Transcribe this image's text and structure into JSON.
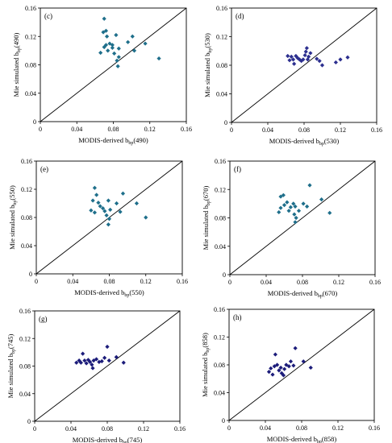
{
  "chart_data": [
    {
      "type": "scatter",
      "panel": "(c)",
      "xlabel": "MODIS-derived b",
      "xlabel_sub": "bp",
      "xlabel_suffix": "(490)",
      "ylabel": "Mie simulated b",
      "ylabel_sub": "bp",
      "ylabel_suffix": "(490)",
      "xlim": [
        0,
        0.16
      ],
      "ylim": [
        0,
        0.16
      ],
      "xticks": [
        "0",
        "0.04",
        "0.08",
        "0.12",
        "0.16"
      ],
      "yticks": [
        "0",
        "0.04",
        "0.08",
        "0.12",
        "0.16"
      ],
      "one_to_one_line": true,
      "marker_color": "#1f6f8b",
      "points": [
        [
          0.07,
          0.145
        ],
        [
          0.069,
          0.126
        ],
        [
          0.072,
          0.128
        ],
        [
          0.073,
          0.12
        ],
        [
          0.076,
          0.11
        ],
        [
          0.072,
          0.108
        ],
        [
          0.079,
          0.108
        ],
        [
          0.066,
          0.097
        ],
        [
          0.07,
          0.105
        ],
        [
          0.074,
          0.1
        ],
        [
          0.079,
          0.104
        ],
        [
          0.083,
          0.122
        ],
        [
          0.081,
          0.096
        ],
        [
          0.086,
          0.103
        ],
        [
          0.086,
          0.091
        ],
        [
          0.084,
          0.086
        ],
        [
          0.085,
          0.078
        ],
        [
          0.096,
          0.112
        ],
        [
          0.101,
          0.12
        ],
        [
          0.103,
          0.1
        ],
        [
          0.115,
          0.11
        ],
        [
          0.13,
          0.089
        ]
      ]
    },
    {
      "type": "scatter",
      "panel": "(d)",
      "xlabel": "MODIS-derived b",
      "xlabel_sub": "bp",
      "xlabel_suffix": "(530)",
      "ylabel": "Mie simulated b",
      "ylabel_sub": "bp",
      "ylabel_suffix": "(530)",
      "xlim": [
        0,
        0.16
      ],
      "ylim": [
        0,
        0.16
      ],
      "xticks": [
        "0",
        "0.04",
        "0.08",
        "0.12",
        "0.16"
      ],
      "yticks": [
        "0",
        "0.04",
        "0.08",
        "0.12",
        "0.16"
      ],
      "one_to_one_line": true,
      "marker_color": "#2c2f8f",
      "points": [
        [
          0.062,
          0.093
        ],
        [
          0.064,
          0.087
        ],
        [
          0.066,
          0.092
        ],
        [
          0.068,
          0.088
        ],
        [
          0.069,
          0.082
        ],
        [
          0.071,
          0.093
        ],
        [
          0.073,
          0.09
        ],
        [
          0.075,
          0.088
        ],
        [
          0.077,
          0.086
        ],
        [
          0.079,
          0.088
        ],
        [
          0.081,
          0.094
        ],
        [
          0.082,
          0.099
        ],
        [
          0.083,
          0.104
        ],
        [
          0.085,
          0.092
        ],
        [
          0.087,
          0.097
        ],
        [
          0.084,
          0.088
        ],
        [
          0.094,
          0.089
        ],
        [
          0.097,
          0.086
        ],
        [
          0.1,
          0.08
        ],
        [
          0.115,
          0.084
        ],
        [
          0.12,
          0.088
        ],
        [
          0.128,
          0.091
        ]
      ]
    },
    {
      "type": "scatter",
      "panel": "(e)",
      "xlabel": "MODIS-derived b",
      "xlabel_sub": "bp",
      "xlabel_suffix": "(550)",
      "ylabel": "Mie simulated b",
      "ylabel_sub": "bp",
      "ylabel_suffix": "(550)",
      "xlim": [
        0,
        0.16
      ],
      "ylim": [
        0,
        0.16
      ],
      "xticks": [
        "0",
        "0.04",
        "0.08",
        "0.12",
        "0.16"
      ],
      "yticks": [
        "0",
        "0.04",
        "0.08",
        "0.12",
        "0.16"
      ],
      "one_to_one_line": true,
      "marker_color": "#1f6f8b",
      "points": [
        [
          0.064,
          0.122
        ],
        [
          0.066,
          0.112
        ],
        [
          0.062,
          0.104
        ],
        [
          0.068,
          0.101
        ],
        [
          0.07,
          0.096
        ],
        [
          0.06,
          0.09
        ],
        [
          0.064,
          0.087
        ],
        [
          0.073,
          0.093
        ],
        [
          0.075,
          0.089
        ],
        [
          0.077,
          0.083
        ],
        [
          0.079,
          0.104
        ],
        [
          0.081,
          0.091
        ],
        [
          0.08,
          0.078
        ],
        [
          0.079,
          0.07
        ],
        [
          0.088,
          0.1
        ],
        [
          0.092,
          0.088
        ],
        [
          0.095,
          0.114
        ],
        [
          0.11,
          0.1
        ],
        [
          0.12,
          0.08
        ]
      ]
    },
    {
      "type": "scatter",
      "panel": "(f)",
      "xlabel": "MODIS-derived b",
      "xlabel_sub": "bp",
      "xlabel_suffix": "(670)",
      "ylabel": "Mie simulated b",
      "ylabel_sub": "bp",
      "ylabel_suffix": "(670)",
      "xlim": [
        0,
        0.16
      ],
      "ylim": [
        0,
        0.16
      ],
      "xticks": [
        "0",
        "0.04",
        "0.08",
        "0.12",
        "0.16"
      ],
      "yticks": [
        "0",
        "0.04",
        "0.08",
        "0.12",
        "0.16"
      ],
      "one_to_one_line": true,
      "marker_color": "#1f6f8b",
      "points": [
        [
          0.056,
          0.11
        ],
        [
          0.059,
          0.112
        ],
        [
          0.056,
          0.094
        ],
        [
          0.054,
          0.088
        ],
        [
          0.06,
          0.098
        ],
        [
          0.063,
          0.102
        ],
        [
          0.065,
          0.09
        ],
        [
          0.067,
          0.095
        ],
        [
          0.07,
          0.1
        ],
        [
          0.072,
          0.096
        ],
        [
          0.071,
          0.085
        ],
        [
          0.073,
          0.08
        ],
        [
          0.072,
          0.074
        ],
        [
          0.076,
          0.09
        ],
        [
          0.081,
          0.1
        ],
        [
          0.085,
          0.096
        ],
        [
          0.088,
          0.126
        ],
        [
          0.101,
          0.106
        ],
        [
          0.11,
          0.087
        ]
      ]
    },
    {
      "type": "scatter",
      "panel": "(g)",
      "xlabel": "MODIS-derived b",
      "xlabel_sub": "bp",
      "xlabel_suffix": "(745)",
      "ylabel": "Mie simulated b",
      "ylabel_sub": "bp",
      "ylabel_suffix": "(745)",
      "xlim": [
        0,
        0.16
      ],
      "ylim": [
        0,
        0.16
      ],
      "xticks": [
        "0",
        "0.04",
        "0.08",
        "0.12",
        "0.16"
      ],
      "yticks": [
        "0",
        "0.04",
        "0.08",
        "0.12",
        "0.16"
      ],
      "one_to_one_line": true,
      "marker_color": "#1c1c7a",
      "points": [
        [
          0.046,
          0.085
        ],
        [
          0.049,
          0.088
        ],
        [
          0.051,
          0.085
        ],
        [
          0.053,
          0.098
        ],
        [
          0.055,
          0.088
        ],
        [
          0.057,
          0.084
        ],
        [
          0.059,
          0.089
        ],
        [
          0.061,
          0.086
        ],
        [
          0.063,
          0.082
        ],
        [
          0.065,
          0.088
        ],
        [
          0.064,
          0.077
        ],
        [
          0.068,
          0.09
        ],
        [
          0.071,
          0.086
        ],
        [
          0.074,
          0.087
        ],
        [
          0.077,
          0.092
        ],
        [
          0.08,
          0.108
        ],
        [
          0.082,
          0.088
        ],
        [
          0.09,
          0.093
        ],
        [
          0.098,
          0.085
        ]
      ]
    },
    {
      "type": "scatter",
      "panel": "(h)",
      "xlabel": "MODIS-derived b",
      "xlabel_sub": "bp",
      "xlabel_suffix": "(858)",
      "ylabel": "Mie simulated b",
      "ylabel_sub": "bp",
      "ylabel_suffix": "(858)",
      "xlim": [
        0,
        0.16
      ],
      "ylim": [
        0,
        0.16
      ],
      "xticks": [
        "0",
        "0.04",
        "0.08",
        "0.12",
        "0.16"
      ],
      "yticks": [
        "0",
        "0.04",
        "0.08",
        "0.12",
        "0.16"
      ],
      "one_to_one_line": true,
      "marker_color": "#1c1c7a",
      "points": [
        [
          0.044,
          0.07
        ],
        [
          0.046,
          0.075
        ],
        [
          0.048,
          0.066
        ],
        [
          0.05,
          0.078
        ],
        [
          0.051,
          0.095
        ],
        [
          0.053,
          0.08
        ],
        [
          0.055,
          0.072
        ],
        [
          0.057,
          0.076
        ],
        [
          0.058,
          0.068
        ],
        [
          0.06,
          0.065
        ],
        [
          0.061,
          0.074
        ],
        [
          0.063,
          0.08
        ],
        [
          0.066,
          0.078
        ],
        [
          0.068,
          0.085
        ],
        [
          0.071,
          0.079
        ],
        [
          0.073,
          0.104
        ],
        [
          0.082,
          0.085
        ],
        [
          0.09,
          0.076
        ]
      ]
    }
  ]
}
